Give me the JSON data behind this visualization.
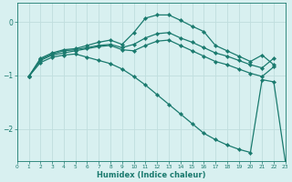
{
  "bg_color": "#d8f0f0",
  "grid_color": "#c0dede",
  "line_color": "#1a7a6e",
  "xlabel": "Humidex (Indice chaleur)",
  "xlim": [
    0,
    23
  ],
  "ylim": [
    -2.6,
    0.35
  ],
  "yticks": [
    0,
    -1,
    -2
  ],
  "xticks": [
    0,
    1,
    2,
    3,
    4,
    5,
    6,
    7,
    8,
    9,
    10,
    11,
    12,
    13,
    14,
    15,
    16,
    17,
    18,
    19,
    20,
    21,
    22,
    23
  ],
  "curve1_x": [
    1,
    2,
    3,
    4,
    5,
    6,
    7,
    8,
    9,
    10,
    11,
    12,
    13,
    14,
    15,
    16,
    17,
    18,
    19,
    20,
    21,
    22,
    23
  ],
  "curve1_y": [
    -1.02,
    -0.68,
    -0.58,
    -0.52,
    -0.5,
    -0.44,
    -0.38,
    -0.34,
    -0.42,
    -0.2,
    0.07,
    0.13,
    0.13,
    0.03,
    -0.08,
    -0.18,
    -0.44,
    -0.54,
    -0.64,
    -0.74,
    -0.62,
    -0.8,
    null
  ],
  "curve2_x": [
    1,
    2,
    3,
    4,
    5,
    6,
    7,
    8,
    9,
    10,
    11,
    12,
    13,
    14,
    15,
    16,
    17,
    18,
    19,
    20,
    21,
    22,
    23
  ],
  "curve2_y": [
    -1.02,
    -0.7,
    -0.6,
    -0.54,
    -0.52,
    -0.48,
    -0.44,
    -0.42,
    -0.48,
    -0.42,
    -0.3,
    -0.22,
    -0.2,
    -0.3,
    -0.38,
    -0.48,
    -0.58,
    -0.64,
    -0.72,
    -0.8,
    -0.86,
    -0.68,
    null
  ],
  "curve3_x": [
    1,
    2,
    3,
    4,
    5,
    6,
    7,
    8,
    9,
    10,
    11,
    12,
    13,
    14,
    15,
    16,
    17,
    18,
    19,
    20,
    21,
    22,
    23
  ],
  "curve3_y": [
    -1.02,
    -0.72,
    -0.62,
    -0.58,
    -0.54,
    -0.5,
    -0.46,
    -0.44,
    -0.52,
    -0.54,
    -0.44,
    -0.36,
    -0.34,
    -0.44,
    -0.54,
    -0.64,
    -0.74,
    -0.8,
    -0.88,
    -0.96,
    -1.02,
    -0.84,
    null
  ],
  "curve4_x": [
    1,
    2,
    3,
    4,
    5,
    6,
    7,
    8,
    9,
    10,
    11,
    12,
    13,
    14,
    15,
    16,
    17,
    18,
    19,
    20,
    21,
    22,
    23
  ],
  "curve4_y": [
    -1.02,
    -0.76,
    -0.66,
    -0.62,
    -0.6,
    -0.66,
    -0.72,
    -0.78,
    -0.88,
    -1.02,
    -1.18,
    -1.36,
    -1.54,
    -1.72,
    -1.9,
    -2.08,
    -2.2,
    -2.3,
    -2.38,
    -2.44,
    -1.08,
    -1.12,
    -2.62
  ]
}
